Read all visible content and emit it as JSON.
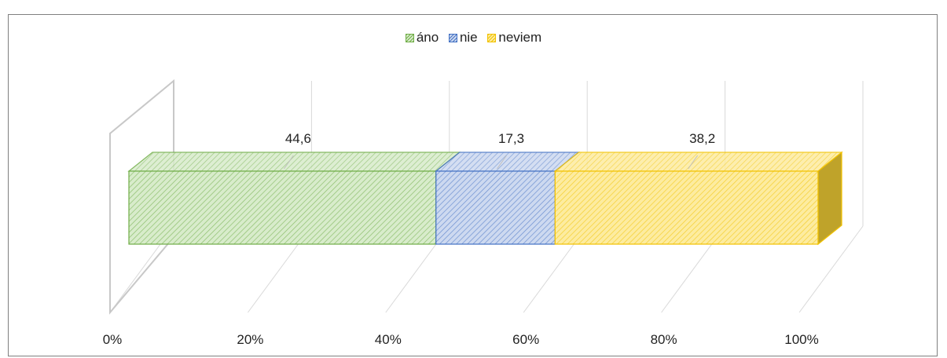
{
  "chart_data": {
    "type": "bar",
    "orientation": "horizontal",
    "stacking": "100% stacked",
    "three_d": true,
    "title": "",
    "categories": [
      ""
    ],
    "series": [
      {
        "name": "áno",
        "values": [
          44.6
        ],
        "color": "#70ad47",
        "fill": "#d8eccb"
      },
      {
        "name": "nie",
        "values": [
          17.3
        ],
        "color": "#4472c4",
        "fill": "#cdd9f0"
      },
      {
        "name": "neviem",
        "values": [
          38.2
        ],
        "color": "#f2c200",
        "fill": "#fdeca0"
      }
    ],
    "data_labels": [
      "44,6",
      "17,3",
      "38,2"
    ],
    "x_ticks": [
      "0%",
      "20%",
      "40%",
      "60%",
      "80%",
      "100%"
    ],
    "xlim": [
      0,
      100
    ],
    "grid": true,
    "legend_position": "top"
  }
}
